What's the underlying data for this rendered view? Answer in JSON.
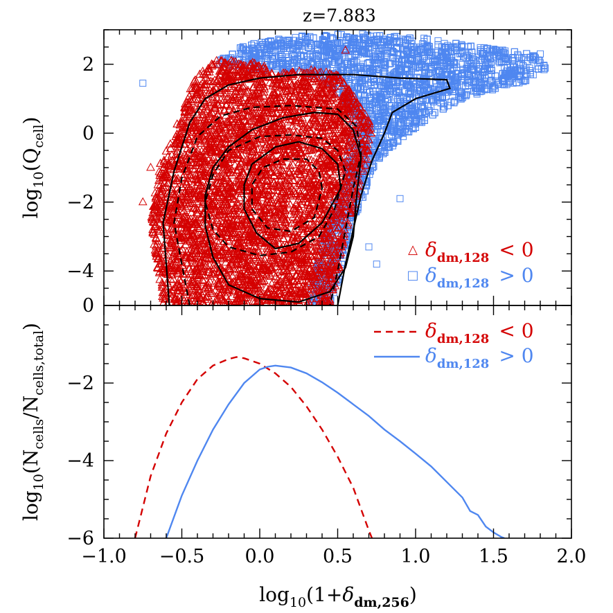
{
  "chart_data": [
    {
      "type": "scatter",
      "title": "z=7.883",
      "xlabel": "",
      "ylabel_main": "log",
      "ylabel_sub": "10",
      "ylabel_inner": "(Q",
      "ylabel_inner_sub": "cell",
      "ylabel_close": ")",
      "xlim": [
        -1.0,
        2.0
      ],
      "ylim": [
        -5.0,
        3.0
      ],
      "yticks": [
        2,
        0,
        -2,
        -4
      ],
      "ytick_labels": [
        "2",
        "0",
        "−2",
        "−4"
      ],
      "series": [
        {
          "name": "δdm,128 < 0",
          "marker": "triangle",
          "color": "#d40000",
          "region_points": [
            [
              -0.62,
              -5.0
            ],
            [
              -0.66,
              -3.8
            ],
            [
              -0.7,
              -2.5
            ],
            [
              -0.64,
              -0.9
            ],
            [
              -0.5,
              0.6
            ],
            [
              -0.42,
              1.6
            ],
            [
              -0.3,
              2.1
            ],
            [
              -0.05,
              2.1
            ],
            [
              0.1,
              1.8
            ],
            [
              0.3,
              1.9
            ],
            [
              0.5,
              1.7
            ],
            [
              0.62,
              1.0
            ],
            [
              0.72,
              0.2
            ],
            [
              0.7,
              -0.6
            ],
            [
              0.65,
              -1.5
            ],
            [
              0.55,
              -3.0
            ],
            [
              0.5,
              -4.2
            ],
            [
              0.45,
              -5.0
            ]
          ],
          "outliers": [
            [
              0.55,
              2.4
            ],
            [
              -0.75,
              -2.0
            ],
            [
              -0.7,
              -1.0
            ]
          ]
        },
        {
          "name": "δdm,128 > 0",
          "marker": "square",
          "color": "#4f87f0",
          "region_points": [
            [
              -0.3,
              2.0
            ],
            [
              -0.1,
              2.55
            ],
            [
              0.2,
              2.8
            ],
            [
              0.6,
              2.9
            ],
            [
              1.0,
              2.8
            ],
            [
              1.4,
              2.5
            ],
            [
              1.75,
              2.3
            ],
            [
              1.85,
              1.9
            ],
            [
              1.7,
              1.5
            ],
            [
              1.45,
              1.2
            ],
            [
              1.3,
              1.0
            ],
            [
              1.1,
              0.5
            ],
            [
              0.95,
              0.0
            ],
            [
              0.75,
              -0.8
            ],
            [
              0.65,
              -2.0
            ],
            [
              0.55,
              -3.2
            ],
            [
              0.5,
              -4.5
            ],
            [
              0.45,
              -5.0
            ],
            [
              0.3,
              -5.0
            ],
            [
              0.4,
              -3.0
            ],
            [
              0.55,
              -1.0
            ],
            [
              0.6,
              0.5
            ],
            [
              0.4,
              1.6
            ]
          ],
          "outliers": [
            [
              -0.75,
              1.45
            ],
            [
              0.7,
              -3.3
            ],
            [
              0.75,
              -3.8
            ],
            [
              1.8,
              2.3
            ],
            [
              1.05,
              1.9
            ],
            [
              0.9,
              -1.9
            ]
          ]
        }
      ],
      "contours": [
        {
          "style": "solid",
          "level": "inner",
          "points": [
            [
              0.52,
              -1.6
            ],
            [
              0.5,
              -0.9
            ],
            [
              0.4,
              -0.45
            ],
            [
              0.25,
              -0.25
            ],
            [
              0.1,
              -0.4
            ],
            [
              -0.05,
              -0.9
            ],
            [
              -0.1,
              -1.5
            ],
            [
              -0.1,
              -2.2
            ],
            [
              -0.02,
              -2.9
            ],
            [
              0.1,
              -3.35
            ],
            [
              0.25,
              -3.2
            ],
            [
              0.4,
              -2.6
            ]
          ]
        },
        {
          "style": "solid",
          "level": "middle",
          "points": [
            [
              0.65,
              -0.7
            ],
            [
              0.6,
              0.1
            ],
            [
              0.5,
              0.55
            ],
            [
              0.35,
              0.6
            ],
            [
              0.15,
              0.45
            ],
            [
              -0.05,
              0.1
            ],
            [
              -0.2,
              -0.4
            ],
            [
              -0.3,
              -1.0
            ],
            [
              -0.35,
              -1.8
            ],
            [
              -0.35,
              -2.7
            ],
            [
              -0.3,
              -3.6
            ],
            [
              -0.2,
              -4.4
            ],
            [
              0.0,
              -4.8
            ],
            [
              0.25,
              -4.9
            ],
            [
              0.45,
              -4.6
            ],
            [
              0.55,
              -3.9
            ],
            [
              0.6,
              -3.0
            ],
            [
              0.62,
              -1.9
            ]
          ]
        },
        {
          "style": "solid",
          "level": "outer",
          "points": [
            [
              -0.58,
              -5.0
            ],
            [
              -0.6,
              -3.8
            ],
            [
              -0.62,
              -2.6
            ],
            [
              -0.55,
              -1.1
            ],
            [
              -0.45,
              0.3
            ],
            [
              -0.35,
              1.0
            ],
            [
              -0.2,
              1.4
            ],
            [
              0.0,
              1.6
            ],
            [
              0.25,
              1.7
            ],
            [
              0.6,
              1.7
            ],
            [
              0.9,
              1.6
            ],
            [
              1.2,
              1.55
            ],
            [
              1.22,
              1.3
            ],
            [
              1.0,
              1.0
            ],
            [
              0.85,
              0.6
            ],
            [
              0.8,
              0.0
            ],
            [
              0.72,
              -0.8
            ],
            [
              0.65,
              -1.8
            ],
            [
              0.6,
              -2.8
            ],
            [
              0.55,
              -3.8
            ],
            [
              0.5,
              -5.0
            ]
          ]
        },
        {
          "style": "dashed",
          "level": "inner",
          "points": [
            [
              0.4,
              -1.6
            ],
            [
              0.38,
              -1.1
            ],
            [
              0.3,
              -0.75
            ],
            [
              0.15,
              -0.75
            ],
            [
              0.02,
              -1.0
            ],
            [
              -0.05,
              -1.5
            ],
            [
              -0.05,
              -2.2
            ],
            [
              0.05,
              -2.75
            ],
            [
              0.2,
              -2.85
            ],
            [
              0.35,
              -2.45
            ]
          ]
        },
        {
          "style": "dashed",
          "level": "middle",
          "points": [
            [
              0.55,
              -1.1
            ],
            [
              0.5,
              -0.5
            ],
            [
              0.4,
              -0.15
            ],
            [
              0.2,
              -0.05
            ],
            [
              0.0,
              -0.1
            ],
            [
              -0.2,
              -0.5
            ],
            [
              -0.3,
              -1.2
            ],
            [
              -0.35,
              -2.0
            ],
            [
              -0.3,
              -2.8
            ],
            [
              -0.2,
              -3.3
            ],
            [
              0.0,
              -3.55
            ],
            [
              0.2,
              -3.45
            ],
            [
              0.38,
              -3.0
            ],
            [
              0.48,
              -2.2
            ]
          ]
        },
        {
          "style": "dashed",
          "level": "outer",
          "points": [
            [
              -0.45,
              -5.0
            ],
            [
              -0.5,
              -3.8
            ],
            [
              -0.55,
              -2.6
            ],
            [
              -0.5,
              -1.3
            ],
            [
              -0.4,
              -0.1
            ],
            [
              -0.25,
              0.5
            ],
            [
              -0.05,
              0.75
            ],
            [
              0.2,
              0.8
            ],
            [
              0.5,
              0.7
            ],
            [
              0.62,
              0.2
            ],
            [
              0.65,
              -0.6
            ],
            [
              0.6,
              -1.6
            ],
            [
              0.55,
              -2.8
            ],
            [
              0.5,
              -4.0
            ],
            [
              0.45,
              -5.0
            ]
          ]
        }
      ],
      "legend": {
        "placement": "bottom-right",
        "entries": [
          {
            "symbol": "△",
            "label_main": "δ",
            "label_sub": "dm,128",
            "relation": "<  0",
            "color": "#d40000"
          },
          {
            "symbol": "□",
            "label_main": "δ",
            "label_sub": "dm,128",
            "relation": ">  0",
            "color": "#4f87f0"
          }
        ]
      }
    },
    {
      "type": "line",
      "xlabel_main": "log",
      "xlabel_sub": "10",
      "xlabel_open": "(1+",
      "xlabel_delta": "δ",
      "xlabel_delta_sub": "dm,256",
      "xlabel_close": ")",
      "ylabel_main": "log",
      "ylabel_sub": "10",
      "ylabel_inner": "(N",
      "ylabel_inner_sub": "cells",
      "ylabel_slash": "/N",
      "ylabel_slash_sub": "cells,total",
      "ylabel_close": ")",
      "xlim": [
        -1.0,
        2.0
      ],
      "ylim": [
        -6.0,
        0.0
      ],
      "xticks": [
        -1.0,
        -0.5,
        0.0,
        0.5,
        1.0,
        1.5,
        2.0
      ],
      "xtick_labels": [
        "−1.0",
        "−0.5",
        "0.0",
        "0.5",
        "1.0",
        "1.5",
        "2.0"
      ],
      "yticks": [
        0,
        -2,
        -4,
        -6
      ],
      "ytick_labels": [
        "0",
        "−2",
        "−4",
        "−6"
      ],
      "series": [
        {
          "name": "δdm,128 < 0",
          "style": "dashed",
          "color": "#d40000",
          "x": [
            -0.8,
            -0.75,
            -0.7,
            -0.6,
            -0.5,
            -0.4,
            -0.3,
            -0.2,
            -0.15,
            -0.1,
            0.0,
            0.1,
            0.2,
            0.3,
            0.4,
            0.5,
            0.6,
            0.7,
            0.72
          ],
          "y": [
            -6.0,
            -5.2,
            -4.4,
            -3.3,
            -2.5,
            -1.9,
            -1.55,
            -1.38,
            -1.33,
            -1.36,
            -1.5,
            -1.75,
            -2.1,
            -2.6,
            -3.2,
            -3.9,
            -4.7,
            -5.8,
            -6.0
          ]
        },
        {
          "name": "δdm,128 > 0",
          "style": "solid",
          "color": "#4f87f0",
          "x": [
            -0.6,
            -0.5,
            -0.4,
            -0.3,
            -0.2,
            -0.1,
            0.0,
            0.05,
            0.1,
            0.2,
            0.3,
            0.4,
            0.5,
            0.6,
            0.7,
            0.8,
            0.9,
            1.0,
            1.1,
            1.2,
            1.3,
            1.35,
            1.4,
            1.45,
            1.5,
            1.55,
            1.57
          ],
          "y": [
            -6.0,
            -4.9,
            -4.0,
            -3.2,
            -2.55,
            -2.0,
            -1.65,
            -1.58,
            -1.55,
            -1.6,
            -1.75,
            -1.98,
            -2.25,
            -2.55,
            -2.85,
            -3.2,
            -3.5,
            -3.82,
            -4.15,
            -4.55,
            -4.95,
            -5.3,
            -5.4,
            -5.7,
            -5.85,
            -5.97,
            -6.0
          ]
        }
      ],
      "legend": {
        "placement": "top-right",
        "entries": [
          {
            "style": "dashed",
            "label_main": "δ",
            "label_sub": "dm,128",
            "relation": "<  0",
            "color": "#d40000"
          },
          {
            "style": "solid",
            "label_main": "δ",
            "label_sub": "dm,128",
            "relation": ">  0",
            "color": "#4f87f0"
          }
        ]
      }
    }
  ]
}
